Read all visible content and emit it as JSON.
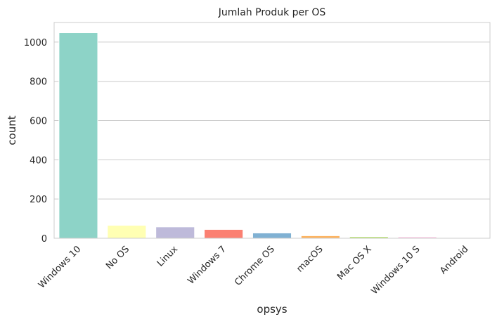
{
  "chart_data": {
    "type": "bar",
    "title": "Jumlah Produk per OS",
    "xlabel": "opsys",
    "ylabel": "count",
    "categories": [
      "Windows 10",
      "No OS",
      "Linux",
      "Windows 7",
      "Chrome OS",
      "macOS",
      "Mac OS X",
      "Windows 10 S",
      "Android"
    ],
    "values": [
      1048,
      66,
      58,
      45,
      27,
      13,
      8,
      8,
      2
    ],
    "colors": [
      "#8dd3c7",
      "#ffffb3",
      "#bebada",
      "#fb8072",
      "#80b1d3",
      "#fdb462",
      "#b3de69",
      "#fccde5",
      "#d9d9d9"
    ],
    "yticks": [
      0,
      200,
      400,
      600,
      800,
      1000
    ],
    "ylim": [
      0,
      1100
    ],
    "grid": true,
    "grid_axis": "y"
  }
}
